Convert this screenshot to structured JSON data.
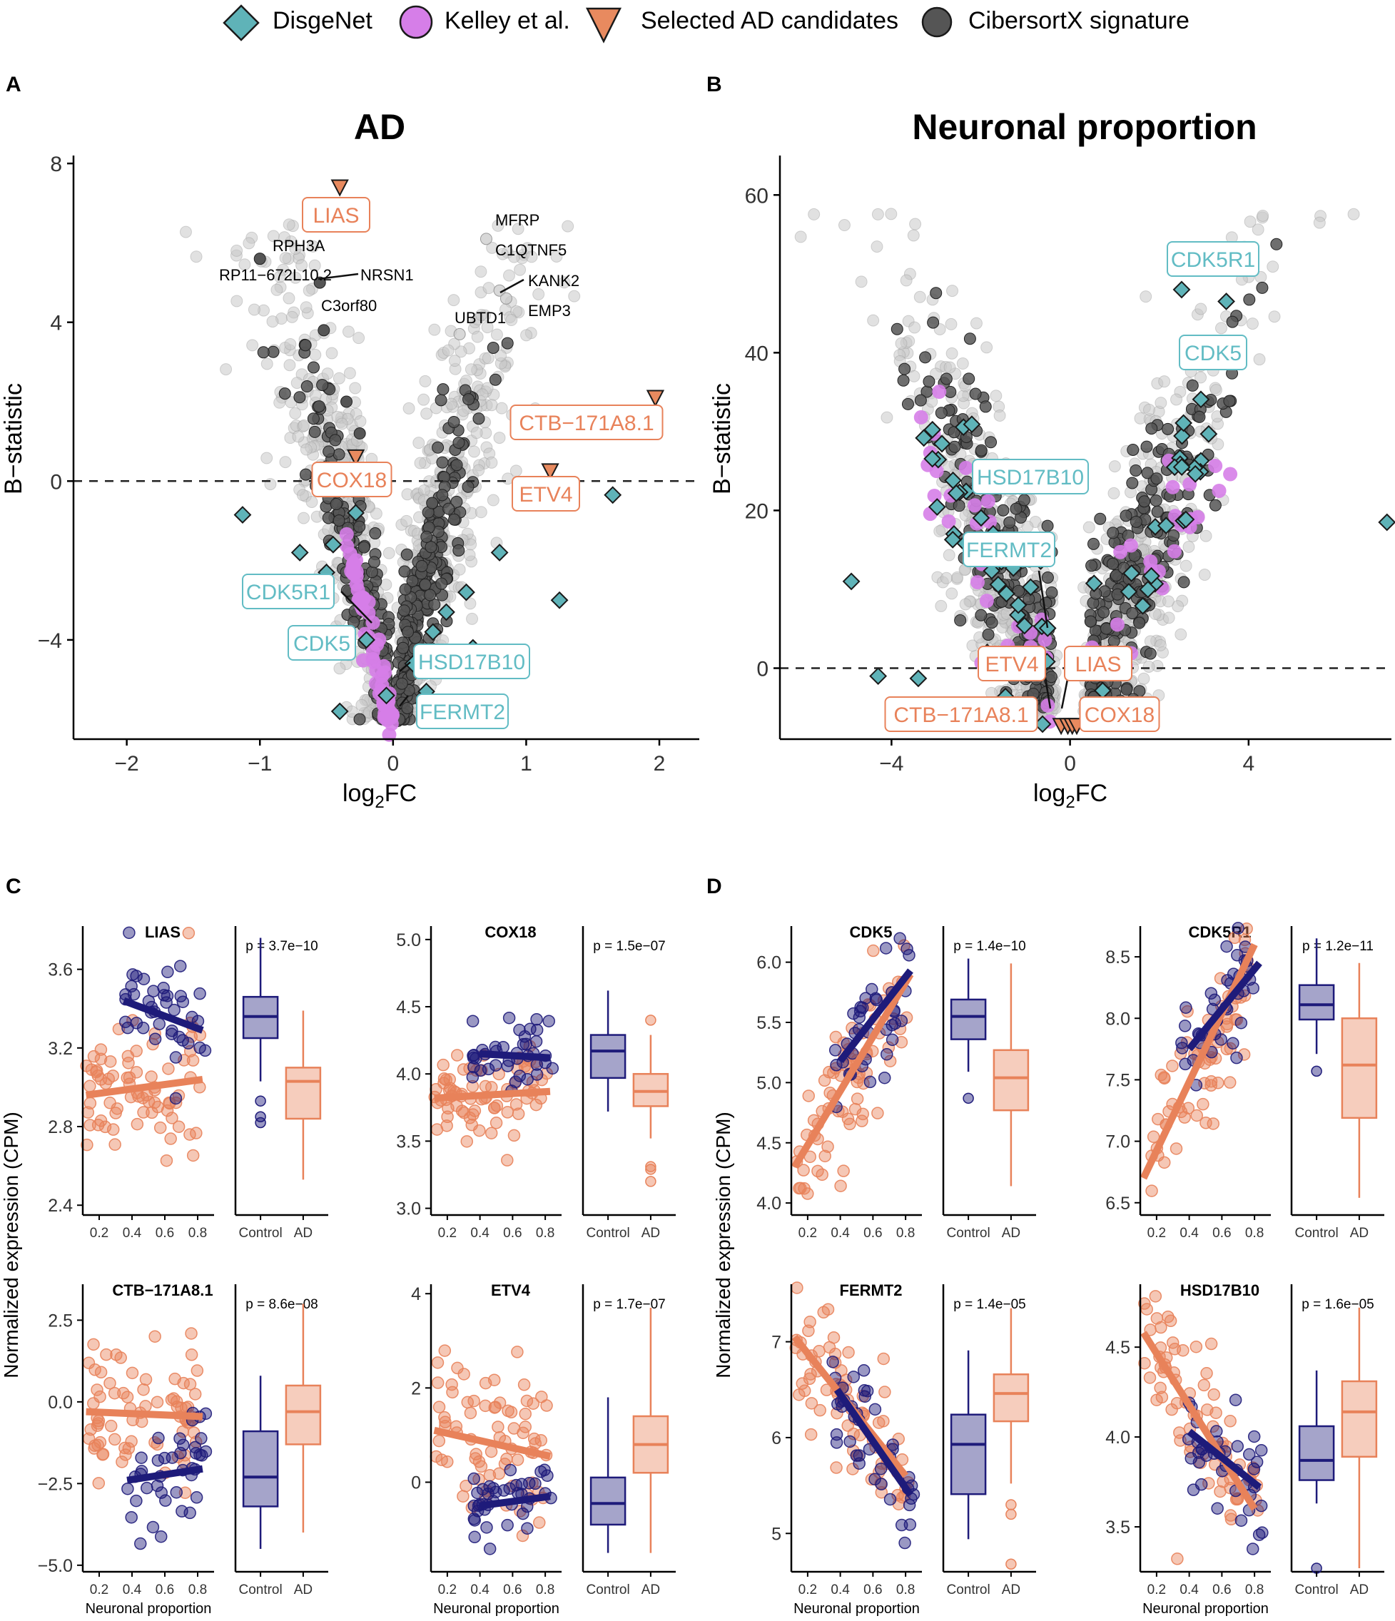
{
  "legend": {
    "items": [
      {
        "label": "DisgeNet",
        "shape": "diamond",
        "color": "#5fb3b8"
      },
      {
        "label": "Kelley et al.",
        "shape": "circle",
        "color": "#d67ee8"
      },
      {
        "label": "Selected AD candidates",
        "shape": "triangle-down",
        "color": "#e88a5f"
      },
      {
        "label": "CibersortX signature",
        "shape": "circle",
        "color": "#555555"
      }
    ]
  },
  "colors": {
    "disgenet": "#5fb3b8",
    "kelley": "#d67ee8",
    "candidate": "#e88a5f",
    "cibersort": "#555555",
    "background_points": "#c8c8c8",
    "control": "#1e1b7a",
    "ad": "#e8825a",
    "candidate_label": "#e8825a",
    "disgenet_label": "#62bcc4"
  },
  "panel_letters": {
    "A": "A",
    "B": "B",
    "C": "C",
    "D": "D"
  },
  "chart_data": [
    {
      "id": "volcano-ad",
      "type": "scatter",
      "title": "AD",
      "xlabel_main": "log",
      "xlabel_sub": "2",
      "xlabel_tail": "FC",
      "ylabel": "B−statistic",
      "xlim": [
        -2.4,
        2.3
      ],
      "ylim": [
        -6.5,
        8.2
      ],
      "x_ticks": [
        -2,
        -1,
        0,
        1,
        2
      ],
      "x_tick_labels": [
        "−2",
        "−1",
        "0",
        "1",
        "2"
      ],
      "y_ticks": [
        -4,
        0,
        4,
        8
      ],
      "y_tick_labels": [
        "−4",
        "0",
        "4",
        "8"
      ],
      "hline": 0,
      "candidates": [
        {
          "gene": "LIAS",
          "x": -0.4,
          "y": 7.4
        },
        {
          "gene": "COX18",
          "x": -0.28,
          "y": 0.6
        },
        {
          "gene": "CTB−171A8.1",
          "x": 1.97,
          "y": 2.1
        },
        {
          "gene": "ETV4",
          "x": 1.18,
          "y": 0.25
        }
      ],
      "top_genes": [
        "RPH3A",
        "RP11−672L10.2",
        "NRSN1",
        "C3orf80",
        "MFRP",
        "C1QTNF5",
        "KANK2",
        "UBTD1",
        "EMP3"
      ],
      "boxed_labels": [
        {
          "gene": "LIAS",
          "group": "candidate"
        },
        {
          "gene": "COX18",
          "group": "candidate"
        },
        {
          "gene": "CTB−171A8.1",
          "group": "candidate"
        },
        {
          "gene": "ETV4",
          "group": "candidate"
        },
        {
          "gene": "CDK5R1",
          "group": "disgenet"
        },
        {
          "gene": "CDK5",
          "group": "disgenet"
        },
        {
          "gene": "HSD17B10",
          "group": "disgenet"
        },
        {
          "gene": "FERMT2",
          "group": "disgenet"
        }
      ]
    },
    {
      "id": "volcano-neuronal",
      "type": "scatter",
      "title": "Neuronal proportion",
      "xlabel_main": "log",
      "xlabel_sub": "2",
      "xlabel_tail": "FC",
      "ylabel": "B−statistic",
      "xlim": [
        -6.5,
        7.2
      ],
      "ylim": [
        -9,
        65
      ],
      "x_ticks": [
        -4,
        0,
        4
      ],
      "x_tick_labels": [
        "−4",
        "0",
        "4"
      ],
      "y_ticks": [
        0,
        20,
        40,
        60
      ],
      "y_tick_labels": [
        "0",
        "20",
        "40",
        "60"
      ],
      "hline": 0,
      "candidates": [
        {
          "gene": "ETV4",
          "x": -0.2,
          "y": -7.3
        },
        {
          "gene": "LIAS",
          "x": -0.05,
          "y": -7.3
        },
        {
          "gene": "CTB−171A8.1",
          "x": 0.05,
          "y": -7.3
        },
        {
          "gene": "COX18",
          "x": 0.15,
          "y": -7.3
        }
      ],
      "boxed_labels": [
        {
          "gene": "CDK5R1",
          "group": "disgenet"
        },
        {
          "gene": "CDK5",
          "group": "disgenet"
        },
        {
          "gene": "HSD17B10",
          "group": "disgenet"
        },
        {
          "gene": "FERMT2",
          "group": "disgenet"
        },
        {
          "gene": "ETV4",
          "group": "candidate"
        },
        {
          "gene": "LIAS",
          "group": "candidate"
        },
        {
          "gene": "CTB−171A8.1",
          "group": "candidate"
        },
        {
          "gene": "COX18",
          "group": "candidate"
        }
      ]
    },
    {
      "id": "expression-panels",
      "type": "scatter",
      "ylabel": "Normalized expression (CPM)",
      "xlabel": "Neuronal proportion",
      "x_ticks": [
        0.2,
        0.4,
        0.6,
        0.8
      ],
      "x_tick_labels": [
        "0.2",
        "0.4",
        "0.6",
        "0.8"
      ],
      "box_categories": [
        "Control",
        "AD"
      ],
      "genes": [
        {
          "gene": "LIAS",
          "panel": "C",
          "p": "p = 3.7e−10",
          "ylim": [
            2.35,
            3.82
          ],
          "y_ticks": [
            2.4,
            2.8,
            3.2,
            3.6
          ],
          "y_tick_labels": [
            "2.4",
            "2.8",
            "3.2",
            "3.6"
          ],
          "control": {
            "mean": 3.3,
            "sd": 0.18,
            "fit": [
              [
                0.35,
                3.44
              ],
              [
                0.83,
                3.29
              ]
            ],
            "box": {
              "min": 3.03,
              "q1": 3.25,
              "median": 3.36,
              "q3": 3.46,
              "max": 3.76
            },
            "outliers": [
              2.85,
              2.82,
              2.93
            ]
          },
          "ad": {
            "mean": 2.98,
            "sd": 0.22,
            "fit": [
              [
                0.12,
                2.96
              ],
              [
                0.83,
                3.04
              ]
            ],
            "box": {
              "min": 2.53,
              "q1": 2.84,
              "median": 3.03,
              "q3": 3.1,
              "max": 3.39
            },
            "outliers": []
          }
        },
        {
          "gene": "COX18",
          "panel": "C",
          "p": "p = 1.5e−07",
          "ylim": [
            2.95,
            5.1
          ],
          "y_ticks": [
            3.0,
            3.5,
            4.0,
            4.5,
            5.0
          ],
          "y_tick_labels": [
            "3.0",
            "3.5",
            "4.0",
            "4.5",
            "5.0"
          ],
          "control": {
            "mean": 4.12,
            "sd": 0.18,
            "fit": [
              [
                0.4,
                4.15
              ],
              [
                0.83,
                4.12
              ]
            ],
            "box": {
              "min": 3.72,
              "q1": 3.97,
              "median": 4.17,
              "q3": 4.29,
              "max": 4.62
            },
            "outliers": []
          },
          "ad": {
            "mean": 3.83,
            "sd": 0.22,
            "fit": [
              [
                0.12,
                3.82
              ],
              [
                0.83,
                3.87
              ]
            ],
            "box": {
              "min": 3.52,
              "q1": 3.76,
              "median": 3.87,
              "q3": 4.0,
              "max": 4.29
            },
            "outliers": [
              4.4,
              3.29,
              3.2,
              3.31
            ]
          }
        },
        {
          "gene": "CTB−171A8.1",
          "panel": "C",
          "p": "p = 8.6e−08",
          "ylim": [
            -5.2,
            3.6
          ],
          "y_ticks": [
            -5.0,
            -2.5,
            0.0,
            2.5
          ],
          "y_tick_labels": [
            "−5.0",
            "−2.5",
            "0.0",
            "2.5"
          ],
          "control": {
            "mean": -2.8,
            "sd": 1.1,
            "fit": [
              [
                0.37,
                -2.4
              ],
              [
                0.83,
                -2.05
              ]
            ],
            "box": {
              "min": -4.5,
              "q1": -3.2,
              "median": -2.3,
              "q3": -0.9,
              "max": 0.8
            },
            "outliers": []
          },
          "ad": {
            "mean": -0.3,
            "sd": 1.3,
            "fit": [
              [
                0.12,
                -0.3
              ],
              [
                0.83,
                -0.45
              ]
            ],
            "box": {
              "min": -4.0,
              "q1": -1.3,
              "median": -0.3,
              "q3": 0.5,
              "max": 3.0
            },
            "outliers": []
          }
        },
        {
          "gene": "ETV4",
          "panel": "C",
          "p": "p = 1.7e−07",
          "ylim": [
            -1.9,
            4.2
          ],
          "y_ticks": [
            0,
            2,
            4
          ],
          "y_tick_labels": [
            "0",
            "2",
            "4"
          ],
          "control": {
            "mean": -0.6,
            "sd": 0.6,
            "fit": [
              [
                0.4,
                -0.5
              ],
              [
                0.83,
                -0.3
              ]
            ],
            "box": {
              "min": -1.5,
              "q1": -0.9,
              "median": -0.45,
              "q3": 0.1,
              "max": 1.8
            },
            "outliers": []
          },
          "ad": {
            "mean": 0.5,
            "sd": 1.0,
            "fit": [
              [
                0.12,
                1.1
              ],
              [
                0.83,
                0.55
              ]
            ],
            "box": {
              "min": -1.5,
              "q1": 0.2,
              "median": 0.8,
              "q3": 1.4,
              "max": 3.7
            },
            "outliers": []
          }
        },
        {
          "gene": "CDK5",
          "panel": "D",
          "p": "p = 1.4e−10",
          "ylim": [
            3.9,
            6.3
          ],
          "y_ticks": [
            4.0,
            4.5,
            5.0,
            5.5,
            6.0
          ],
          "y_tick_labels": [
            "4.0",
            "4.5",
            "5.0",
            "5.5",
            "6.0"
          ],
          "control": {
            "mean": 5.5,
            "sd": 0.3,
            "fit": [
              [
                0.4,
                5.18
              ],
              [
                0.83,
                5.93
              ]
            ],
            "box": {
              "min": 5.09,
              "q1": 5.36,
              "median": 5.55,
              "q3": 5.69,
              "max": 6.03
            },
            "outliers": [
              4.87
            ]
          },
          "ad": {
            "mean": 5.0,
            "sd": 0.4,
            "fit": [
              [
                0.12,
                4.3
              ],
              [
                0.83,
                5.9
              ]
            ],
            "box": {
              "min": 4.14,
              "q1": 4.77,
              "median": 5.04,
              "q3": 5.27,
              "max": 5.99
            },
            "outliers": []
          }
        },
        {
          "gene": "CDK5R1",
          "panel": "D",
          "p": "p = 1.2e−11",
          "ylim": [
            6.4,
            8.75
          ],
          "y_ticks": [
            6.5,
            7.0,
            7.5,
            8.0,
            8.5
          ],
          "y_tick_labels": [
            "6.5",
            "7.0",
            "7.5",
            "8.0",
            "8.5"
          ],
          "control": {
            "mean": 8.1,
            "sd": 0.25,
            "fit": [
              [
                0.4,
                7.75
              ],
              [
                0.83,
                8.45
              ]
            ],
            "box": {
              "min": 7.71,
              "q1": 7.99,
              "median": 8.11,
              "q3": 8.27,
              "max": 8.65
            },
            "outliers": [
              7.57
            ]
          },
          "ad": {
            "mean": 7.6,
            "sd": 0.4,
            "fit": [
              [
                0.12,
                6.7
              ],
              [
                0.8,
                8.6
              ]
            ],
            "box": {
              "min": 6.54,
              "q1": 7.19,
              "median": 7.62,
              "q3": 8.0,
              "max": 8.45
            },
            "outliers": []
          }
        },
        {
          "gene": "FERMT2",
          "panel": "D",
          "p": "p = 1.4e−05",
          "ylim": [
            4.6,
            7.6
          ],
          "y_ticks": [
            5,
            6,
            7
          ],
          "y_tick_labels": [
            "5",
            "6",
            "7"
          ],
          "control": {
            "mean": 5.9,
            "sd": 0.4,
            "fit": [
              [
                0.38,
                6.5
              ],
              [
                0.83,
                5.4
              ]
            ],
            "box": {
              "min": 4.94,
              "q1": 5.41,
              "median": 5.93,
              "q3": 6.24,
              "max": 6.91
            },
            "outliers": []
          },
          "ad": {
            "mean": 6.4,
            "sd": 0.4,
            "fit": [
              [
                0.12,
                7.05
              ],
              [
                0.8,
                5.6
              ]
            ],
            "box": {
              "min": 5.52,
              "q1": 6.17,
              "median": 6.46,
              "q3": 6.66,
              "max": 7.35
            },
            "outliers": [
              5.3,
              5.2,
              4.68
            ]
          }
        },
        {
          "gene": "HSD17B10",
          "panel": "D",
          "p": "p = 1.6e−05",
          "ylim": [
            3.25,
            4.85
          ],
          "y_ticks": [
            3.5,
            4.0,
            4.5
          ],
          "y_tick_labels": [
            "3.5",
            "4.0",
            "4.5"
          ],
          "control": {
            "mean": 3.9,
            "sd": 0.2,
            "fit": [
              [
                0.4,
                4.03
              ],
              [
                0.83,
                3.72
              ]
            ],
            "box": {
              "min": 3.63,
              "q1": 3.76,
              "median": 3.87,
              "q3": 4.06,
              "max": 4.37
            },
            "outliers": [
              3.27
            ]
          },
          "ad": {
            "mean": 4.1,
            "sd": 0.25,
            "fit": [
              [
                0.12,
                4.58
              ],
              [
                0.8,
                3.6
              ]
            ],
            "box": {
              "min": 3.27,
              "q1": 3.89,
              "median": 4.14,
              "q3": 4.31,
              "max": 4.72
            },
            "outliers": []
          }
        }
      ]
    }
  ]
}
